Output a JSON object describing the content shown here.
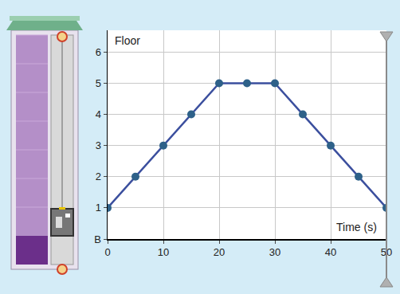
{
  "chart_data": {
    "type": "line",
    "x_label": "Time (s)",
    "y_label": "Floor",
    "x": [
      0,
      5,
      10,
      15,
      20,
      25,
      30,
      35,
      40,
      45,
      50
    ],
    "values": [
      1,
      2,
      3,
      4,
      5,
      5,
      5,
      4,
      3,
      2,
      1
    ],
    "color": "#3b4f9e",
    "marker": "circle",
    "xlim": [
      0,
      50
    ],
    "xticks": [
      0,
      10,
      20,
      30,
      40,
      50
    ],
    "ylim": [
      0,
      6.7
    ],
    "yticks": [
      {
        "value": 0,
        "label": "B"
      },
      1,
      2,
      3,
      4,
      5,
      6
    ],
    "grid": true
  }
}
